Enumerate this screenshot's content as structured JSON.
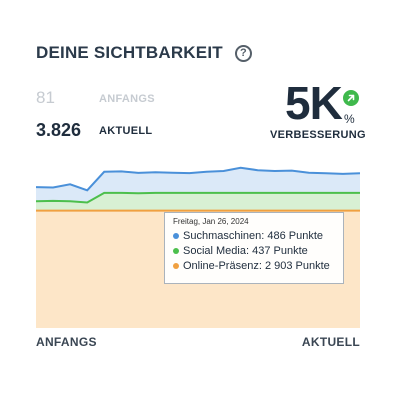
{
  "header": {
    "title": "DEINE SICHTBARKEIT",
    "help_icon": "?"
  },
  "stats": {
    "start_value": "81",
    "start_label": "ANFANGS",
    "current_value": "3.826",
    "current_label": "AKTUELL"
  },
  "improvement": {
    "value": "5K",
    "percent": "%",
    "label": "VERBESSERUNG",
    "badge_icon": "arrow-up-right-icon",
    "badge_color": "#3fb94c"
  },
  "colors": {
    "search": "#4a90d9",
    "social": "#4cbf4c",
    "presence": "#f0a040"
  },
  "tooltip": {
    "date": "Freitag, Jan 26, 2024",
    "rows": [
      {
        "prefix": "Suchmaschinen: ",
        "value": "486 Punkte"
      },
      {
        "prefix": "Social Media: ",
        "value": "437 Punkte"
      },
      {
        "prefix": "Online-Präsenz: ",
        "value": "2 903 Punkte"
      }
    ]
  },
  "axis": {
    "start_label": "ANFANGS",
    "end_label": "AKTUELL"
  },
  "chart_data": {
    "type": "area",
    "stacked": true,
    "xlabel": "",
    "ylabel": "",
    "x": [
      1,
      2,
      3,
      4,
      5,
      6,
      7,
      8,
      9,
      10,
      11,
      12,
      13,
      14,
      15,
      16,
      17,
      18,
      19,
      20
    ],
    "series": [
      {
        "name": "Online-Präsenz",
        "values": [
          2903,
          2903,
          2903,
          2903,
          2903,
          2903,
          2903,
          2903,
          2903,
          2903,
          2903,
          2903,
          2903,
          2903,
          2903,
          2903,
          2903,
          2903,
          2903,
          2903
        ]
      },
      {
        "name": "Social Media",
        "values": [
          230,
          240,
          230,
          200,
          437,
          437,
          430,
          437,
          437,
          437,
          437,
          437,
          437,
          437,
          437,
          437,
          437,
          437,
          437,
          437
        ]
      },
      {
        "name": "Suchmaschinen",
        "values": [
          350,
          330,
          420,
          300,
          520,
          530,
          500,
          510,
          500,
          490,
          520,
          540,
          620,
          560,
          540,
          550,
          500,
          486,
          470,
          486
        ]
      }
    ],
    "ylim": [
      0,
      4400
    ],
    "legend": "none",
    "grid": false
  }
}
